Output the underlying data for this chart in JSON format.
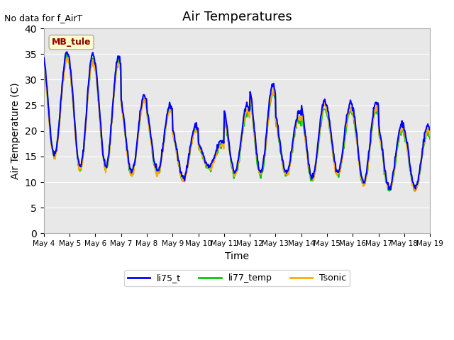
{
  "title": "Air Temperatures",
  "xlabel": "Time",
  "ylabel": "Air Temperature (C)",
  "no_data_text": "No data for f_AirT",
  "annotation_text": "MB_tule",
  "ylim": [
    0,
    40
  ],
  "yticks": [
    0,
    5,
    10,
    15,
    20,
    25,
    30,
    35,
    40
  ],
  "background_color": "#e8e8e8",
  "series": {
    "li75_t": {
      "color": "#0000ff",
      "linewidth": 1.5
    },
    "li77_temp": {
      "color": "#00cc00",
      "linewidth": 1.5
    },
    "Tsonic": {
      "color": "#ffaa00",
      "linewidth": 1.5
    }
  },
  "x_tick_labels": [
    "May 4",
    "May 5",
    "May 6",
    "May 7",
    "May 8",
    "May 9",
    "May 10",
    "May 11",
    "May 12",
    "May 13",
    "May 14",
    "May 15",
    "May 16",
    "May 17",
    "May 18",
    "May 19"
  ],
  "num_days": 15,
  "points_per_day": 48
}
